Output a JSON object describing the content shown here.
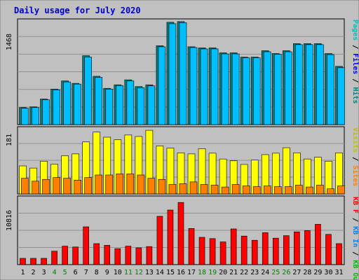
{
  "chart_data": {
    "type": "bar",
    "title": "Daily usage for July 2020",
    "categories": [
      "1",
      "2",
      "3",
      "4",
      "5",
      "6",
      "7",
      "8",
      "9",
      "10",
      "11",
      "12",
      "13",
      "14",
      "15",
      "16",
      "17",
      "18",
      "19",
      "20",
      "21",
      "22",
      "23",
      "24",
      "25",
      "26",
      "27",
      "28",
      "29",
      "30",
      "31"
    ],
    "weekend_days": [
      "4",
      "5",
      "11",
      "12",
      "18",
      "19",
      "25",
      "26"
    ],
    "panels": [
      {
        "id": "top",
        "ytick": "1468",
        "ylim": [
          0,
          1468
        ],
        "legend": [
          {
            "text": "Pages",
            "color": "#00c0c0"
          },
          {
            "text": "Files",
            "color": "#0000ff"
          },
          {
            "text": "Hits",
            "color": "#008080"
          }
        ],
        "series": [
          {
            "name": "Hits",
            "color": "#008080",
            "values": [
              240,
              250,
              360,
              500,
              615,
              580,
              970,
              680,
              510,
              560,
              630,
              535,
              560,
              1110,
              1440,
              1450,
              1095,
              1080,
              1080,
              1010,
              1010,
              950,
              950,
              1040,
              1000,
              1040,
              1140,
              1140,
              1140,
              1000,
              820
            ]
          },
          {
            "name": "Files",
            "color": "#00bfff",
            "values": [
              230,
              240,
              350,
              490,
              600,
              570,
              950,
              665,
              500,
              550,
              615,
              520,
              545,
              1095,
              1420,
              1435,
              1085,
              1065,
              1065,
              995,
              995,
              940,
              940,
              1025,
              990,
              1025,
              1125,
              1125,
              1125,
              985,
              800
            ]
          }
        ]
      },
      {
        "id": "middle",
        "ytick": "181",
        "ylim": [
          0,
          181
        ],
        "legend": [
          {
            "text": "Visits",
            "color": "#c0c000"
          },
          {
            "text": "Sites",
            "color": "#ff8000"
          }
        ],
        "series": [
          {
            "name": "Visits",
            "color": "#ffff00",
            "values": [
              77,
              71,
              90,
              82,
              105,
              110,
              143,
              170,
              156,
              149,
              162,
              158,
              175,
              132,
              126,
              113,
              110,
              124,
              112,
              96,
              91,
              81,
              93,
              108,
              112,
              127,
              113,
              96,
              101,
              90,
              113
            ]
          },
          {
            "name": "Sites",
            "color": "#ff8000",
            "values": [
              43,
              35,
              40,
              45,
              43,
              38,
              45,
              52,
              52,
              55,
              55,
              52,
              43,
              40,
              26,
              28,
              33,
              26,
              24,
              19,
              26,
              22,
              20,
              22,
              20,
              20,
              24,
              19,
              24,
              14,
              22
            ]
          }
        ]
      },
      {
        "id": "bottom",
        "ytick": "10816",
        "ylim": [
          0,
          16000
        ],
        "legend": [
          {
            "text": "KB F",
            "color": "#ff0000"
          },
          {
            "text": "KB In",
            "color": "#0080ff"
          },
          {
            "text": "KB Out",
            "color": "#00c000"
          }
        ],
        "series": [
          {
            "name": "KB F",
            "color": "#ff0000",
            "values": [
              1500,
              1500,
              1500,
              3200,
              4400,
              4200,
              9000,
              5000,
              4600,
              3800,
              4400,
              4000,
              4300,
              11500,
              13000,
              14800,
              8600,
              6500,
              6200,
              5400,
              8500,
              6800,
              5800,
              7600,
              6300,
              6900,
              7800,
              8100,
              9600,
              7200,
              5000
            ]
          }
        ]
      }
    ]
  }
}
